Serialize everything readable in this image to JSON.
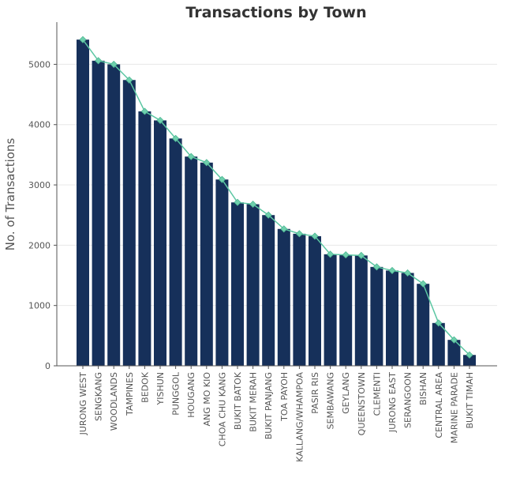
{
  "chart_data": {
    "type": "bar",
    "title": "Transactions by Town",
    "xlabel": "",
    "ylabel": "No. of Transactions",
    "ylim": [
      0,
      5700
    ],
    "yticks": [
      0,
      1000,
      2000,
      3000,
      4000,
      5000
    ],
    "grid": true,
    "categories": [
      "JURONG WEST",
      "SENGKANG",
      "WOODLANDS",
      "TAMPINES",
      "BEDOK",
      "YISHUN",
      "PUNGGOL",
      "HOUGANG",
      "ANG MO KIO",
      "CHOA CHU KANG",
      "BUKIT BATOK",
      "BUKIT MERAH",
      "BUKIT PANJANG",
      "TOA PAYOH",
      "KALLANG/WHAMPOA",
      "PASIR RIS",
      "SEMBAWANG",
      "GEYLANG",
      "QUEENSTOWN",
      "CLEMENTI",
      "JURONG EAST",
      "SERANGOON",
      "BISHAN",
      "CENTRAL AREA",
      "MARINE PARADE",
      "BUKIT TIMAH"
    ],
    "values": [
      5410,
      5060,
      5000,
      4740,
      4220,
      4070,
      3770,
      3470,
      3370,
      3090,
      2710,
      2680,
      2500,
      2270,
      2190,
      2150,
      1850,
      1840,
      1830,
      1640,
      1580,
      1540,
      1360,
      710,
      430,
      180
    ],
    "colors": {
      "bar": "#16305a",
      "line": "#5cc7a3",
      "marker": "#6fd0ad"
    }
  }
}
